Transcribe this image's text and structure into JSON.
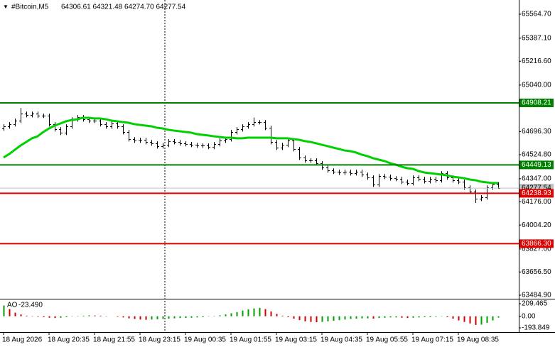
{
  "chart_data": [
    {
      "type": "ohlc",
      "title": "#Bitcoin,M5",
      "ohlc_label": "64306.61 64321.48 64274.70 64277.54",
      "categories": [
        "18 Aug 2026",
        null,
        null,
        null,
        null,
        null,
        null,
        null,
        "18 Aug 20:35",
        null,
        null,
        null,
        null,
        null,
        null,
        null,
        "18 Aug 21:55",
        null,
        null,
        null,
        null,
        null,
        null,
        null,
        "18 Aug 23:15",
        null,
        null,
        null,
        null,
        null,
        null,
        null,
        "19 Aug 00:35",
        null,
        null,
        null,
        null,
        null,
        null,
        null,
        "19 Aug 01:55",
        null,
        null,
        null,
        null,
        null,
        null,
        null,
        "19 Aug 03:15",
        null,
        null,
        null,
        null,
        null,
        null,
        null,
        "19 Aug 04:35",
        null,
        null,
        null,
        null,
        null,
        null,
        null,
        "19 Aug 05:55",
        null,
        null,
        null,
        null,
        null,
        null,
        null,
        "19 Aug 07:15",
        null,
        null,
        null,
        null,
        null,
        null,
        null,
        "19 Aug 08:35",
        null,
        null,
        null,
        null,
        null,
        null,
        null
      ],
      "open": [
        64720,
        64735,
        64751,
        64777,
        64829,
        64819,
        64829,
        64814,
        64814,
        64751,
        64714,
        64688,
        64735,
        64787,
        64803,
        64787,
        64777,
        64777,
        64751,
        64735,
        64756,
        64735,
        64693,
        64640,
        64630,
        64635,
        64619,
        64609,
        64588,
        64598,
        64625,
        64619,
        64609,
        64604,
        64598,
        64593,
        64593,
        64583,
        64604,
        64630,
        64640,
        64693,
        64714,
        64735,
        64751,
        64766,
        64766,
        64724,
        64619,
        64577,
        64598,
        64630,
        64567,
        64504,
        64483,
        64483,
        64462,
        64430,
        64409,
        64399,
        64393,
        64399,
        64388,
        64399,
        64378,
        64357,
        64304,
        64367,
        64362,
        64351,
        64346,
        64325,
        64315,
        64357,
        64346,
        64330,
        64346,
        64336,
        64388,
        64357,
        64336,
        64325,
        64283,
        64252,
        64199,
        64210,
        64283,
        64306.61
      ],
      "high": [
        64750,
        64766,
        64792,
        64871,
        64844,
        64844,
        64844,
        64829,
        64829,
        64766,
        64729,
        64750,
        64802,
        64818,
        64818,
        64802,
        64792,
        64792,
        64766,
        64771,
        64771,
        64750,
        64708,
        64655,
        64650,
        64650,
        64634,
        64624,
        64613,
        64640,
        64640,
        64634,
        64624,
        64619,
        64613,
        64608,
        64608,
        64619,
        64645,
        64655,
        64708,
        64729,
        64750,
        64766,
        64800,
        64781,
        64781,
        64739,
        64634,
        64613,
        64645,
        64645,
        64582,
        64519,
        64498,
        64498,
        64477,
        64445,
        64424,
        64414,
        64414,
        64414,
        64414,
        64414,
        64393,
        64372,
        64382,
        64382,
        64377,
        64366,
        64361,
        64340,
        64372,
        64372,
        64361,
        64361,
        64361,
        64403,
        64403,
        64372,
        64351,
        64340,
        64298,
        64267,
        64225,
        64298,
        64322,
        64321.48
      ],
      "low": [
        64705,
        64720,
        64736,
        64762,
        64804,
        64804,
        64799,
        64799,
        64736,
        64699,
        64673,
        64673,
        64720,
        64772,
        64772,
        64762,
        64762,
        64736,
        64720,
        64720,
        64720,
        64678,
        64625,
        64615,
        64615,
        64604,
        64594,
        64573,
        64573,
        64583,
        64604,
        64594,
        64589,
        64583,
        64578,
        64578,
        64568,
        64568,
        64589,
        64615,
        64625,
        64678,
        64699,
        64720,
        64736,
        64751,
        64709,
        64604,
        64562,
        64562,
        64583,
        64552,
        64489,
        64468,
        64468,
        64447,
        64415,
        64394,
        64384,
        64378,
        64378,
        64373,
        64373,
        64363,
        64342,
        64289,
        64289,
        64347,
        64336,
        64331,
        64310,
        64300,
        64300,
        64331,
        64315,
        64315,
        64321,
        64321,
        64342,
        64321,
        64310,
        64268,
        64237,
        64170,
        64184,
        64195,
        64268,
        64274.7
      ],
      "close": [
        64735,
        64751,
        64777,
        64829,
        64819,
        64829,
        64814,
        64814,
        64751,
        64714,
        64688,
        64735,
        64787,
        64803,
        64787,
        64777,
        64777,
        64751,
        64735,
        64756,
        64735,
        64693,
        64640,
        64630,
        64635,
        64619,
        64609,
        64588,
        64598,
        64625,
        64619,
        64609,
        64604,
        64598,
        64593,
        64593,
        64583,
        64604,
        64630,
        64640,
        64693,
        64714,
        64735,
        64751,
        64766,
        64766,
        64724,
        64619,
        64577,
        64598,
        64630,
        64567,
        64504,
        64483,
        64483,
        64462,
        64430,
        64409,
        64399,
        64393,
        64399,
        64388,
        64399,
        64378,
        64357,
        64304,
        64367,
        64362,
        64351,
        64346,
        64325,
        64315,
        64357,
        64346,
        64330,
        64346,
        64336,
        64388,
        64357,
        64336,
        64325,
        64283,
        64252,
        64199,
        64210,
        64283,
        64306.61,
        64277.54
      ],
      "color": "#000000",
      "ma": {
        "color": "#00d000",
        "values": [
          64504,
          64530,
          64562,
          64593,
          64619,
          64646,
          64661,
          64693,
          64719,
          64740,
          64756,
          64772,
          64782,
          64787,
          64798,
          64798,
          64793,
          64793,
          64787,
          64777,
          64772,
          64766,
          64761,
          64751,
          64745,
          64740,
          64735,
          64724,
          64719,
          64709,
          64703,
          64698,
          64693,
          64688,
          64677,
          64672,
          64667,
          64661,
          64656,
          64651,
          64651,
          64646,
          64646,
          64651,
          64651,
          64651,
          64651,
          64651,
          64646,
          64646,
          64646,
          64640,
          64635,
          64625,
          64619,
          64609,
          64598,
          64588,
          64577,
          64567,
          64556,
          64551,
          64541,
          64525,
          64514,
          64499,
          64488,
          64478,
          64462,
          64451,
          64436,
          64425,
          64420,
          64404,
          64393,
          64388,
          64383,
          64378,
          64372,
          64362,
          64357,
          64351,
          64341,
          64336,
          64325,
          64320,
          64315,
          64315
        ]
      },
      "levels": [
        {
          "value": 64908.21,
          "label": "64908.21",
          "color": "#008000"
        },
        {
          "value": 64449.13,
          "label": "64449.13",
          "color": "#008000"
        },
        {
          "value": 64238.93,
          "label": "64238.93",
          "color": "#e00000"
        },
        {
          "value": 63866.3,
          "label": "63866.30",
          "color": "#e00000"
        }
      ],
      "ylim": [
        63463.9,
        65669.7
      ],
      "yticks": [
        {
          "value": 65564.7,
          "label": "65564.70"
        },
        {
          "value": 65387.1,
          "label": "65387.10"
        },
        {
          "value": 65216.6,
          "label": "65216.60"
        },
        {
          "value": 65040,
          "label": "65040.00"
        },
        {
          "value": 64696.3,
          "label": "64696.30"
        },
        {
          "value": 64524.8,
          "label": "64524.80"
        },
        {
          "value": 64347,
          "label": "64347.00"
        },
        {
          "value": 64176,
          "label": "64176.00"
        },
        {
          "value": 64004.2,
          "label": "64004.20"
        },
        {
          "value": 63827,
          "label": "63827.00"
        },
        {
          "value": 63656.5,
          "label": "63656.50"
        },
        {
          "value": 63484.9,
          "label": "63484.90"
        }
      ]
    },
    {
      "type": "histogram",
      "title": "AO",
      "last_value_label": "-23.490",
      "values": [
        180,
        120,
        60,
        30,
        10,
        -5,
        -10,
        -15,
        -25,
        -30,
        -25,
        -15,
        -5,
        5,
        10,
        15,
        12,
        10,
        5,
        0,
        -10,
        -20,
        -35,
        -45,
        -55,
        -60,
        -55,
        -50,
        -45,
        -40,
        -35,
        -30,
        -28,
        -25,
        -20,
        -15,
        -5,
        5,
        15,
        30,
        50,
        70,
        95,
        115,
        130,
        140,
        120,
        80,
        40,
        10,
        -15,
        -40,
        -65,
        -85,
        -95,
        -100,
        -95,
        -85,
        -75,
        -65,
        -55,
        -45,
        -40,
        -35,
        -35,
        -40,
        -30,
        -25,
        -20,
        -20,
        -25,
        -30,
        -25,
        -20,
        -15,
        -15,
        -10,
        -5,
        -15,
        -40,
        -70,
        -95,
        -120,
        -145,
        -140,
        -110,
        -70,
        -23.49
      ],
      "up_color": "#00a000",
      "down_color": "#d00000",
      "ylim": [
        -265,
        280.7
      ],
      "yticks": [
        209.465,
        {
          "value": 0,
          "label": "0.00"
        },
        -193.849
      ]
    }
  ]
}
